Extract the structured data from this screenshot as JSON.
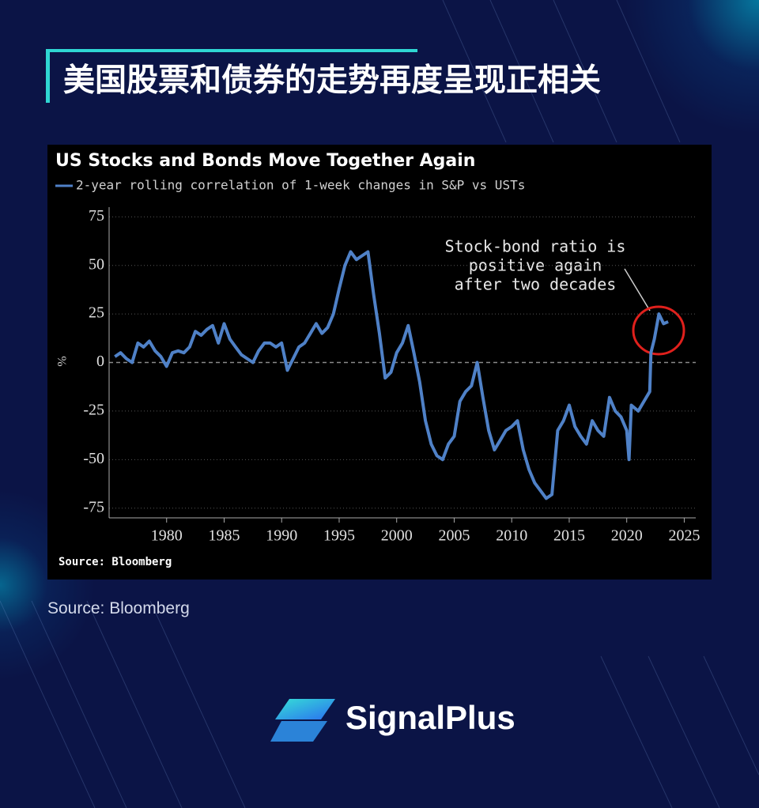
{
  "header": {
    "title": "美国股票和债券的走势再度呈现正相关"
  },
  "chart_data": {
    "type": "line",
    "title": "US Stocks and Bonds Move Together Again",
    "y_label": "%",
    "annotation": [
      "Stock-bond ratio is",
      "positive again",
      "after two decades"
    ],
    "source": "Source: Bloomberg",
    "x": [
      1975.5,
      1976,
      1976.5,
      1977,
      1977.5,
      1978,
      1978.5,
      1979,
      1979.5,
      1980,
      1980.5,
      1981,
      1981.5,
      1982,
      1982.5,
      1983,
      1983.5,
      1984,
      1984.5,
      1985,
      1985.5,
      1986,
      1986.5,
      1987,
      1987.5,
      1988,
      1988.5,
      1989,
      1989.5,
      1990,
      1990.5,
      1991,
      1991.5,
      1992,
      1992.5,
      1993,
      1993.5,
      1994,
      1994.5,
      1995,
      1995.5,
      1996,
      1996.5,
      1997,
      1997.5,
      1998,
      1998.5,
      1999,
      1999.5,
      2000,
      2000.5,
      2001,
      2001.5,
      2002,
      2002.5,
      2003,
      2003.5,
      2004,
      2004.5,
      2005,
      2005.5,
      2006,
      2006.5,
      2007,
      2007.5,
      2008,
      2008.5,
      2009,
      2009.5,
      2010,
      2010.5,
      2011,
      2011.5,
      2012,
      2012.5,
      2013,
      2013.5,
      2014,
      2014.5,
      2015,
      2015.5,
      2016,
      2016.5,
      2017,
      2017.5,
      2018,
      2018.5,
      2019,
      2019.5,
      2020,
      2020.2,
      2020.4,
      2021,
      2021.5,
      2022,
      2022.1,
      2022.4,
      2022.8,
      2023.2,
      2023.6
    ],
    "series": [
      {
        "name": "2-year rolling correlation of 1-week changes in S&P vs USTs",
        "color": "#4f81c7",
        "values": [
          3,
          5,
          2,
          0,
          10,
          8,
          11,
          6,
          3,
          -2,
          5,
          6,
          5,
          8,
          16,
          14,
          17,
          19,
          10,
          20,
          12,
          8,
          4,
          2,
          0,
          6,
          10,
          10,
          8,
          10,
          -4,
          2,
          8,
          10,
          15,
          20,
          15,
          18,
          25,
          38,
          50,
          57,
          53,
          55,
          57,
          35,
          15,
          -8,
          -5,
          5,
          10,
          19,
          5,
          -10,
          -30,
          -42,
          -48,
          -50,
          -42,
          -38,
          -20,
          -15,
          -12,
          0,
          -18,
          -35,
          -45,
          -40,
          -35,
          -33,
          -30,
          -45,
          -55,
          -62,
          -66,
          -70,
          -68,
          -35,
          -30,
          -22,
          -33,
          -38,
          -42,
          -30,
          -35,
          -38,
          -18,
          -25,
          -28,
          -35,
          -50,
          -22,
          -25,
          -20,
          -15,
          5,
          12,
          25,
          20,
          21
        ]
      }
    ],
    "xlim": [
      1975,
      2026
    ],
    "xticks": [
      1980,
      1985,
      1990,
      1995,
      2000,
      2005,
      2010,
      2015,
      2020,
      2025
    ],
    "ylim": [
      -80,
      80
    ],
    "yticks": [
      -75,
      -50,
      -25,
      0,
      25,
      50,
      75
    ],
    "grid": true
  },
  "footer": {
    "source": "Source: Bloomberg",
    "brand": "SignalPlus"
  }
}
